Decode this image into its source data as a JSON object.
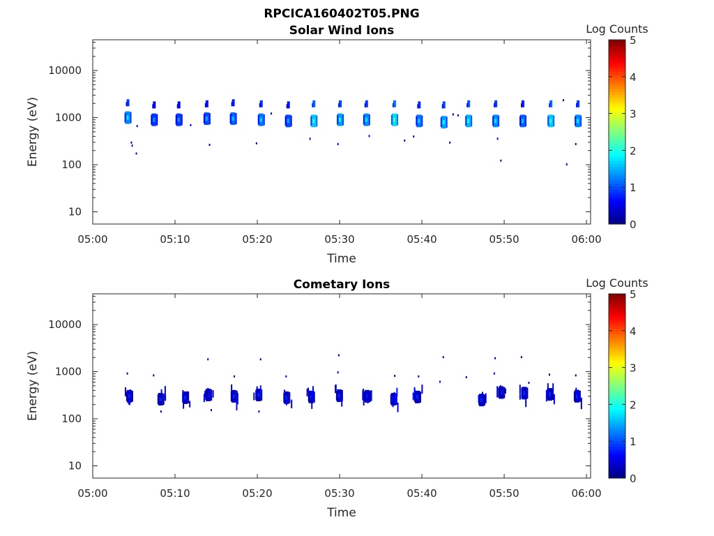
{
  "figure": {
    "filename": "RPCICA160402T05.PNG"
  },
  "chart_data": [
    {
      "type": "heatmap",
      "title": "Solar Wind Ions",
      "xlabel": "Time",
      "ylabel": "Energy (eV)",
      "x_ticks": [
        "05:00",
        "05:10",
        "05:20",
        "05:30",
        "05:40",
        "05:50",
        "06:00"
      ],
      "y_ticks": [
        "10",
        "100",
        "1000",
        "10000"
      ],
      "y_scale": "log",
      "ylim": [
        5.5,
        45000
      ],
      "xlim_minutes": [
        0,
        60.5
      ],
      "colorbar": {
        "label": "Log Counts",
        "min": 0,
        "max": 5,
        "ticks": [
          "0",
          "1",
          "2",
          "3",
          "4",
          "5"
        ],
        "colormap": "jet"
      },
      "clusters": [
        {
          "t": 4.2,
          "e": 1000,
          "e2": 2000,
          "v": 1.3
        },
        {
          "t": 7.4,
          "e": 900,
          "e2": 1800,
          "v": 0.9
        },
        {
          "t": 10.4,
          "e": 900,
          "e2": 1800,
          "v": 0.9
        },
        {
          "t": 13.8,
          "e": 950,
          "e2": 1900,
          "v": 1.0
        },
        {
          "t": 17.0,
          "e": 950,
          "e2": 2000,
          "v": 1.1
        },
        {
          "t": 20.4,
          "e": 900,
          "e2": 1900,
          "v": 1.2
        },
        {
          "t": 23.7,
          "e": 850,
          "e2": 1800,
          "v": 1.0
        },
        {
          "t": 26.8,
          "e": 850,
          "e2": 1900,
          "v": 1.6
        },
        {
          "t": 30.0,
          "e": 900,
          "e2": 1900,
          "v": 1.4
        },
        {
          "t": 33.2,
          "e": 900,
          "e2": 1900,
          "v": 1.3
        },
        {
          "t": 36.6,
          "e": 900,
          "e2": 1900,
          "v": 1.7
        },
        {
          "t": 39.6,
          "e": 850,
          "e2": 1800,
          "v": 1.2
        },
        {
          "t": 42.6,
          "e": 800,
          "e2": 1800,
          "v": 1.4
        },
        {
          "t": 45.6,
          "e": 850,
          "e2": 1900,
          "v": 1.5
        },
        {
          "t": 48.9,
          "e": 850,
          "e2": 1900,
          "v": 1.3
        },
        {
          "t": 52.2,
          "e": 850,
          "e2": 1900,
          "v": 1.1
        },
        {
          "t": 55.6,
          "e": 850,
          "e2": 1900,
          "v": 1.6
        },
        {
          "t": 58.9,
          "e": 850,
          "e2": 1900,
          "v": 1.3
        }
      ],
      "dots": [
        {
          "t": 4.7,
          "e": 290
        },
        {
          "t": 4.8,
          "e": 250
        },
        {
          "t": 5.3,
          "e": 170
        },
        {
          "t": 5.4,
          "e": 650
        },
        {
          "t": 11.9,
          "e": 680
        },
        {
          "t": 14.2,
          "e": 260
        },
        {
          "t": 19.9,
          "e": 280
        },
        {
          "t": 21.7,
          "e": 1200
        },
        {
          "t": 26.4,
          "e": 350
        },
        {
          "t": 29.8,
          "e": 270
        },
        {
          "t": 33.6,
          "e": 400
        },
        {
          "t": 37.9,
          "e": 320
        },
        {
          "t": 39.0,
          "e": 390
        },
        {
          "t": 43.4,
          "e": 290
        },
        {
          "t": 43.8,
          "e": 1150
        },
        {
          "t": 44.4,
          "e": 1100
        },
        {
          "t": 49.2,
          "e": 350
        },
        {
          "t": 49.6,
          "e": 120
        },
        {
          "t": 57.2,
          "e": 2300
        },
        {
          "t": 57.6,
          "e": 100
        },
        {
          "t": 58.7,
          "e": 270
        }
      ]
    },
    {
      "type": "heatmap",
      "title": "Cometary Ions",
      "xlabel": "Time",
      "ylabel": "Energy (eV)",
      "x_ticks": [
        "05:00",
        "05:10",
        "05:20",
        "05:30",
        "05:40",
        "05:50",
        "06:00"
      ],
      "y_ticks": [
        "10",
        "100",
        "1000",
        "10000"
      ],
      "y_scale": "log",
      "ylim": [
        5.5,
        45000
      ],
      "xlim_minutes": [
        0,
        60.5
      ],
      "colorbar": {
        "label": "Log Counts",
        "min": 0,
        "max": 5,
        "ticks": [
          "0",
          "1",
          "2",
          "3",
          "4",
          "5"
        ],
        "colormap": "jet"
      },
      "clusters": [
        {
          "t": 4.4,
          "e": 300,
          "v": 0.3
        },
        {
          "t": 8.2,
          "e": 260,
          "v": 0.3
        },
        {
          "t": 11.2,
          "e": 280,
          "v": 0.3
        },
        {
          "t": 14.0,
          "e": 320,
          "v": 0.3
        },
        {
          "t": 17.1,
          "e": 300,
          "v": 0.3
        },
        {
          "t": 20.1,
          "e": 320,
          "v": 0.3
        },
        {
          "t": 23.5,
          "e": 280,
          "v": 0.3
        },
        {
          "t": 26.5,
          "e": 290,
          "v": 0.3
        },
        {
          "t": 29.9,
          "e": 310,
          "v": 0.3
        },
        {
          "t": 33.3,
          "e": 300,
          "v": 0.3
        },
        {
          "t": 36.5,
          "e": 260,
          "v": 0.3
        },
        {
          "t": 39.4,
          "e": 290,
          "v": 0.3
        },
        {
          "t": 47.2,
          "e": 250,
          "v": 0.3
        },
        {
          "t": 49.6,
          "e": 360,
          "v": 0.3
        },
        {
          "t": 52.4,
          "e": 350,
          "v": 0.3
        },
        {
          "t": 55.5,
          "e": 330,
          "v": 0.3
        },
        {
          "t": 58.8,
          "e": 300,
          "v": 0.3
        }
      ],
      "dots": [
        {
          "t": 4.2,
          "e": 900
        },
        {
          "t": 7.4,
          "e": 820
        },
        {
          "t": 8.3,
          "e": 140
        },
        {
          "t": 14.0,
          "e": 1800
        },
        {
          "t": 14.4,
          "e": 150
        },
        {
          "t": 17.2,
          "e": 780
        },
        {
          "t": 20.4,
          "e": 1800
        },
        {
          "t": 20.2,
          "e": 140
        },
        {
          "t": 23.5,
          "e": 780
        },
        {
          "t": 29.9,
          "e": 2200
        },
        {
          "t": 29.8,
          "e": 950
        },
        {
          "t": 36.7,
          "e": 800
        },
        {
          "t": 39.6,
          "e": 780
        },
        {
          "t": 42.2,
          "e": 600
        },
        {
          "t": 42.6,
          "e": 2000
        },
        {
          "t": 45.4,
          "e": 750
        },
        {
          "t": 48.9,
          "e": 1900
        },
        {
          "t": 48.8,
          "e": 900
        },
        {
          "t": 52.1,
          "e": 2000
        },
        {
          "t": 53.0,
          "e": 570
        },
        {
          "t": 55.5,
          "e": 850
        },
        {
          "t": 58.7,
          "e": 820
        }
      ]
    }
  ]
}
